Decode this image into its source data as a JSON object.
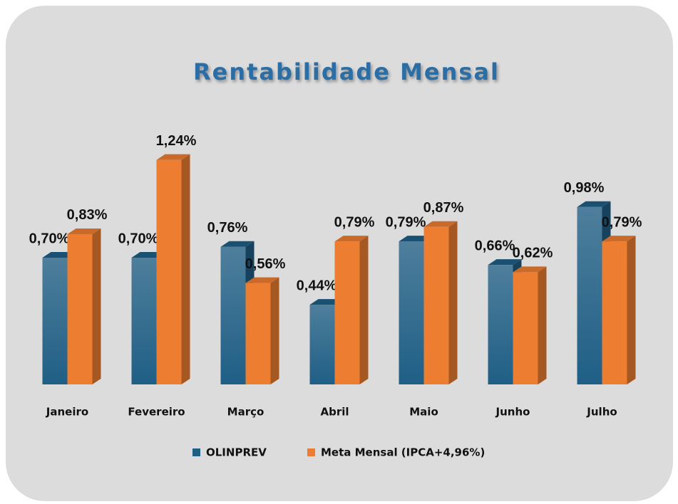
{
  "chart_data": {
    "type": "bar",
    "title": "Rentabilidade Mensal",
    "categories": [
      "Janeiro",
      "Fevereiro",
      "Março",
      "Abril",
      "Maio",
      "Junho",
      "Julho"
    ],
    "series": [
      {
        "name": "OLINPREV",
        "color": "#1f5f86",
        "values": [
          0.7,
          0.7,
          0.76,
          0.44,
          0.79,
          0.66,
          0.98
        ],
        "value_labels": [
          "0,70%",
          "0,70%",
          "0,76%",
          "0,44%",
          "0,79%",
          "0,66%",
          "0,98%"
        ]
      },
      {
        "name": "Meta Mensal (IPCA+4,96%)",
        "color": "#ed7d31",
        "values": [
          0.83,
          1.24,
          0.56,
          0.79,
          0.87,
          0.62,
          0.79
        ],
        "value_labels": [
          "0,83%",
          "1,24%",
          "0,56%",
          "0,79%",
          "0,87%",
          "0,62%",
          "0,79%"
        ]
      }
    ],
    "ylim": [
      0,
      1.4
    ]
  }
}
